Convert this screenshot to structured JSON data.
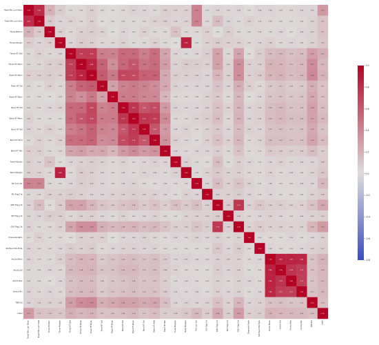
{
  "chart_data": {
    "type": "heatmap",
    "title": "",
    "labels": [
      "Tread Min Lum Mean",
      "Tread Min Lum Stdd",
      "Throw Bottom",
      "Throw Max/Jsn",
      "Throw HT Stdf",
      "Throw HT Mean",
      "Tread HT Mean",
      "Tread HT Std",
      "Tread HT Mean",
      "Band HT Std",
      "Band HT Mean",
      "Band HT Std",
      "Band HT Stdd",
      "Band HT Mtn",
      "Tread Max/Jsn",
      "Band Max/Jsn",
      "PIX Lum Var",
      "PIX Flag Cnt",
      "GPD Flag Cnt",
      "PKT Flag Cnt",
      "GKO Flag Cnt",
      "Downside Ratio",
      "Std Band Min Byte",
      "Vectra Mean",
      "Vectra Std",
      "Vectra Max",
      "Vectra Min",
      "TBB Std",
      "Label"
    ],
    "values": [
      [
        1.0,
        0.81,
        0.2,
        0.07,
        0.02,
        0.03,
        0.06,
        0.03,
        0.01,
        0.03,
        0.05,
        0.04,
        0.02,
        0.06,
        0.05,
        0.05,
        0.41,
        0.02,
        0.04,
        0.03,
        0.04,
        0.01,
        0.04,
        0.04,
        0.03,
        0.03,
        0.04,
        0.04,
        0.31
      ],
      [
        0.81,
        1.0,
        0.09,
        0.04,
        0.05,
        0.03,
        0.06,
        0.01,
        0.02,
        0.03,
        0.02,
        0.03,
        0.05,
        0.06,
        0.04,
        0.05,
        0.41,
        0.03,
        0.15,
        0.04,
        0.02,
        0.05,
        0.03,
        0.03,
        0.02,
        0.02,
        0.03,
        0.05,
        0.12
      ],
      [
        0.2,
        0.09,
        1.0,
        0.06,
        0.03,
        0.06,
        0.07,
        0.05,
        0.01,
        0.04,
        0.02,
        0.06,
        0.03,
        0.02,
        0.12,
        0.03,
        0.03,
        0.06,
        0.01,
        0.07,
        0.03,
        0.02,
        0.03,
        0.02,
        0.04,
        0.01,
        0.04,
        0.05,
        0.12
      ],
      [
        0.07,
        0.04,
        0.06,
        1.0,
        0.04,
        0.08,
        0.06,
        0.03,
        0.03,
        0.05,
        0.02,
        0.03,
        0.06,
        0.03,
        0.01,
        0.86,
        0.02,
        0.05,
        0.08,
        0.06,
        0.05,
        0.03,
        0.04,
        0.06,
        0.03,
        0.04,
        0.03,
        0.05,
        0.1
      ],
      [
        0.02,
        0.05,
        0.03,
        0.04,
        1.0,
        0.73,
        0.74,
        0.43,
        0.41,
        0.53,
        0.53,
        0.43,
        0.51,
        0.26,
        0.04,
        0.02,
        0.04,
        0.07,
        0.27,
        0.03,
        0.26,
        0.01,
        0.07,
        0.15,
        0.16,
        0.13,
        0.15,
        0.29,
        0.21
      ],
      [
        0.03,
        0.03,
        0.06,
        0.08,
        0.73,
        1.0,
        0.85,
        0.56,
        0.36,
        0.54,
        0.62,
        0.48,
        0.52,
        0.29,
        0.05,
        0.08,
        0.07,
        0.05,
        0.27,
        0.05,
        0.36,
        0.06,
        0.06,
        0.19,
        0.18,
        0.15,
        0.16,
        0.37,
        0.17
      ],
      [
        0.06,
        0.06,
        0.07,
        0.06,
        0.74,
        0.85,
        1.0,
        0.59,
        0.46,
        0.69,
        0.68,
        0.57,
        0.56,
        0.23,
        0.07,
        0.06,
        0.06,
        0.04,
        0.18,
        0.06,
        0.36,
        0.05,
        0.08,
        0.18,
        0.19,
        0.15,
        0.16,
        0.39,
        0.19
      ],
      [
        0.03,
        0.01,
        0.05,
        0.03,
        0.43,
        0.56,
        0.59,
        1.0,
        0.28,
        0.41,
        0.45,
        0.41,
        0.37,
        0.24,
        0.05,
        0.04,
        0.04,
        0.04,
        0.11,
        0.04,
        0.21,
        0.06,
        0.03,
        0.09,
        0.11,
        0.08,
        0.09,
        0.21,
        0.12
      ],
      [
        0.01,
        0.02,
        0.01,
        0.03,
        0.41,
        0.36,
        0.46,
        0.28,
        1.0,
        0.44,
        0.45,
        0.4,
        0.39,
        0.18,
        0.03,
        0.03,
        0.03,
        0.05,
        0.09,
        0.02,
        0.16,
        0.01,
        0.04,
        0.11,
        0.12,
        0.1,
        0.11,
        0.24,
        0.13
      ],
      [
        0.03,
        0.03,
        0.04,
        0.05,
        0.53,
        0.54,
        0.69,
        0.41,
        0.44,
        1.0,
        0.77,
        0.62,
        0.67,
        0.31,
        0.05,
        0.04,
        0.04,
        0.06,
        0.12,
        0.05,
        0.18,
        0.04,
        0.05,
        0.14,
        0.16,
        0.12,
        0.13,
        0.28,
        0.14
      ],
      [
        0.05,
        0.02,
        0.02,
        0.02,
        0.53,
        0.62,
        0.68,
        0.45,
        0.45,
        0.77,
        1.0,
        0.76,
        0.74,
        0.38,
        0.03,
        0.03,
        0.05,
        0.07,
        0.14,
        0.03,
        0.19,
        0.04,
        0.06,
        0.15,
        0.17,
        0.14,
        0.14,
        0.27,
        0.16
      ],
      [
        0.04,
        0.03,
        0.06,
        0.03,
        0.43,
        0.48,
        0.57,
        0.41,
        0.4,
        0.62,
        0.76,
        1.0,
        0.62,
        0.31,
        0.04,
        0.05,
        0.03,
        0.05,
        0.09,
        0.04,
        0.15,
        0.05,
        0.04,
        0.12,
        0.13,
        0.11,
        0.12,
        0.23,
        0.11
      ],
      [
        0.02,
        0.05,
        0.03,
        0.06,
        0.51,
        0.52,
        0.56,
        0.37,
        0.39,
        0.67,
        0.74,
        0.62,
        1.0,
        0.34,
        0.06,
        0.04,
        0.02,
        0.06,
        0.12,
        0.05,
        0.17,
        0.03,
        0.05,
        0.14,
        0.14,
        0.12,
        0.13,
        0.26,
        0.15
      ],
      [
        0.06,
        0.06,
        0.02,
        0.03,
        0.26,
        0.29,
        0.23,
        0.24,
        0.18,
        0.31,
        0.38,
        0.31,
        0.34,
        1.0,
        0.04,
        0.03,
        0.04,
        0.04,
        0.07,
        0.03,
        0.11,
        0.02,
        0.03,
        0.09,
        0.08,
        0.07,
        0.08,
        0.14,
        0.07
      ],
      [
        0.05,
        0.04,
        0.12,
        0.01,
        0.04,
        0.05,
        0.07,
        0.05,
        0.03,
        0.05,
        0.03,
        0.04,
        0.06,
        0.04,
        1.0,
        0.06,
        0.03,
        0.02,
        0.14,
        0.02,
        0.06,
        0.04,
        0.02,
        0.04,
        0.05,
        0.03,
        0.04,
        0.04,
        0.08
      ],
      [
        0.05,
        0.05,
        0.03,
        0.86,
        0.02,
        0.08,
        0.06,
        0.04,
        0.03,
        0.04,
        0.03,
        0.05,
        0.04,
        0.03,
        0.06,
        1.0,
        0.03,
        0.05,
        0.09,
        0.05,
        0.06,
        0.03,
        0.03,
        0.05,
        0.03,
        0.04,
        0.03,
        0.05,
        0.1
      ],
      [
        0.41,
        0.41,
        0.03,
        0.02,
        0.04,
        0.07,
        0.06,
        0.04,
        0.03,
        0.04,
        0.05,
        0.03,
        0.02,
        0.04,
        0.03,
        0.03,
        1.0,
        0.04,
        0.14,
        0.06,
        0.11,
        0.05,
        0.02,
        0.04,
        0.03,
        0.03,
        0.04,
        0.04,
        0.16
      ],
      [
        0.02,
        0.03,
        0.06,
        0.05,
        0.07,
        0.05,
        0.04,
        0.04,
        0.05,
        0.06,
        0.07,
        0.05,
        0.06,
        0.04,
        0.02,
        0.05,
        0.04,
        1.0,
        0.06,
        0.05,
        0.07,
        0.04,
        0.03,
        0.04,
        0.02,
        0.03,
        0.02,
        0.05,
        0.08
      ],
      [
        0.04,
        0.15,
        0.01,
        0.08,
        0.27,
        0.27,
        0.18,
        0.11,
        0.09,
        0.12,
        0.14,
        0.09,
        0.12,
        0.07,
        0.14,
        0.09,
        0.14,
        0.06,
        1.0,
        0.08,
        0.76,
        0.05,
        0.1,
        0.06,
        0.07,
        0.05,
        0.06,
        0.12,
        0.24
      ],
      [
        0.03,
        0.04,
        0.07,
        0.06,
        0.03,
        0.05,
        0.06,
        0.04,
        0.02,
        0.05,
        0.03,
        0.04,
        0.05,
        0.03,
        0.02,
        0.05,
        0.06,
        0.05,
        0.08,
        1.0,
        0.06,
        0.03,
        0.04,
        0.05,
        0.04,
        0.03,
        0.04,
        0.05,
        0.07
      ],
      [
        0.04,
        0.02,
        0.03,
        0.05,
        0.26,
        0.36,
        0.36,
        0.21,
        0.16,
        0.18,
        0.19,
        0.15,
        0.17,
        0.11,
        0.06,
        0.06,
        0.11,
        0.07,
        0.76,
        0.06,
        1.0,
        0.05,
        0.08,
        0.05,
        0.06,
        0.05,
        0.05,
        0.18,
        0.3
      ],
      [
        0.01,
        0.05,
        0.02,
        0.03,
        0.01,
        0.06,
        0.05,
        0.06,
        0.01,
        0.04,
        0.04,
        0.05,
        0.03,
        0.02,
        0.04,
        0.03,
        0.05,
        0.04,
        0.05,
        0.03,
        0.05,
        1.0,
        0.03,
        0.03,
        0.02,
        0.04,
        0.02,
        0.04,
        0.06
      ],
      [
        0.04,
        0.03,
        0.03,
        0.04,
        0.07,
        0.06,
        0.08,
        0.03,
        0.04,
        0.05,
        0.06,
        0.04,
        0.05,
        0.03,
        0.02,
        0.03,
        0.02,
        0.03,
        0.1,
        0.04,
        0.08,
        0.03,
        1.0,
        0.04,
        0.03,
        0.03,
        0.04,
        0.05,
        0.07
      ],
      [
        0.04,
        0.03,
        0.02,
        0.06,
        0.15,
        0.19,
        0.18,
        0.09,
        0.11,
        0.14,
        0.15,
        0.12,
        0.14,
        0.09,
        0.04,
        0.05,
        0.04,
        0.04,
        0.06,
        0.05,
        0.05,
        0.03,
        0.04,
        1.0,
        0.86,
        0.85,
        0.84,
        0.12,
        0.2
      ],
      [
        0.03,
        0.02,
        0.04,
        0.03,
        0.16,
        0.18,
        0.19,
        0.11,
        0.12,
        0.16,
        0.17,
        0.13,
        0.14,
        0.08,
        0.05,
        0.03,
        0.03,
        0.02,
        0.07,
        0.04,
        0.06,
        0.02,
        0.03,
        0.86,
        1.0,
        0.78,
        0.73,
        0.13,
        0.18
      ],
      [
        0.03,
        0.02,
        0.01,
        0.04,
        0.13,
        0.15,
        0.15,
        0.08,
        0.1,
        0.12,
        0.14,
        0.11,
        0.12,
        0.07,
        0.03,
        0.04,
        0.03,
        0.03,
        0.05,
        0.03,
        0.05,
        0.04,
        0.03,
        0.85,
        0.78,
        1.0,
        0.72,
        0.11,
        0.17
      ],
      [
        0.04,
        0.03,
        0.04,
        0.03,
        0.15,
        0.16,
        0.16,
        0.09,
        0.11,
        0.13,
        0.14,
        0.12,
        0.13,
        0.08,
        0.04,
        0.03,
        0.04,
        0.02,
        0.06,
        0.04,
        0.05,
        0.02,
        0.04,
        0.84,
        0.73,
        0.72,
        1.0,
        0.12,
        0.16
      ],
      [
        0.04,
        0.05,
        0.05,
        0.05,
        0.29,
        0.37,
        0.39,
        0.21,
        0.24,
        0.28,
        0.27,
        0.23,
        0.26,
        0.14,
        0.04,
        0.05,
        0.04,
        0.05,
        0.12,
        0.05,
        0.18,
        0.04,
        0.05,
        0.12,
        0.13,
        0.11,
        0.12,
        1.0,
        0.14
      ],
      [
        0.31,
        0.12,
        0.12,
        0.1,
        0.21,
        0.17,
        0.19,
        0.12,
        0.13,
        0.14,
        0.16,
        0.11,
        0.15,
        0.07,
        0.08,
        0.1,
        0.16,
        0.08,
        0.24,
        0.07,
        0.3,
        0.06,
        0.07,
        0.2,
        0.18,
        0.17,
        0.16,
        0.14,
        1.0
      ]
    ],
    "colorbar": {
      "min": -0.8,
      "max": 1.0,
      "ticks": [
        1.0,
        0.8,
        0.6,
        0.4,
        0.2,
        0.0,
        -0.2,
        -0.4,
        -0.6,
        -0.8
      ]
    },
    "colormap": {
      "negative": "#3b4cc0",
      "neutral": "#dddcdc",
      "positive": "#b40426"
    },
    "annotate": true,
    "grid": false
  }
}
